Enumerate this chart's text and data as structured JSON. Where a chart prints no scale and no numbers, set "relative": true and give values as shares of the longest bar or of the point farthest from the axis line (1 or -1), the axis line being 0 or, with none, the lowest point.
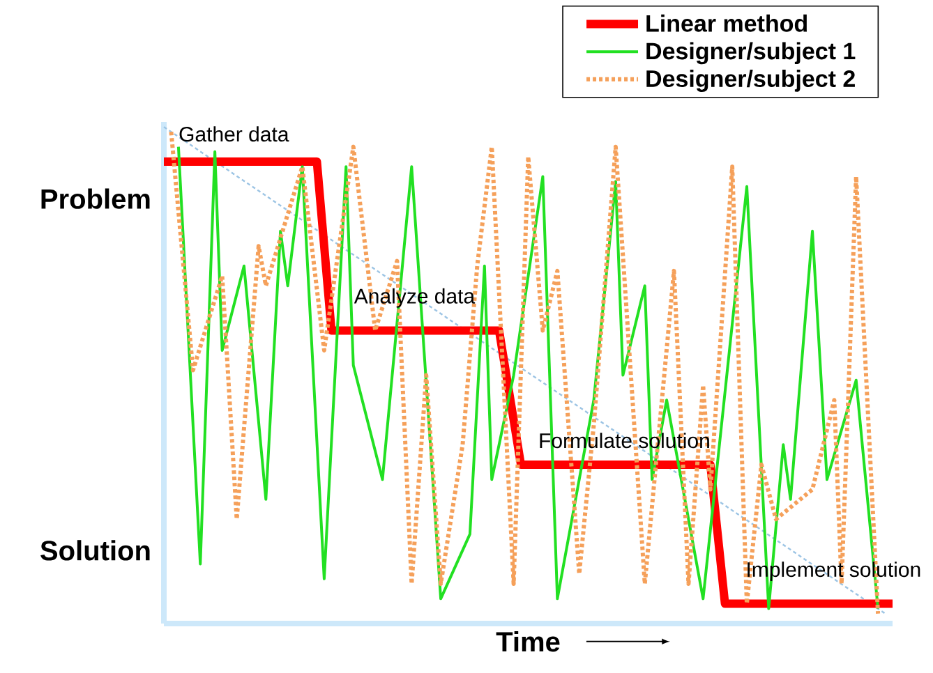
{
  "chart_data": {
    "type": "line",
    "relative": true,
    "xlabel": "Time",
    "legend": "top right",
    "marker": "none",
    "categories": [
      null,
      null,
      null,
      null,
      null,
      null,
      null,
      null,
      null,
      null,
      null,
      null,
      null,
      null,
      null,
      null,
      null,
      null,
      null,
      null,
      null,
      null,
      null,
      null,
      null,
      null,
      null,
      null,
      null,
      null,
      null,
      null,
      null,
      null,
      null,
      null,
      null,
      null,
      null,
      null,
      null,
      null,
      null,
      null,
      null,
      null,
      null,
      null,
      null,
      null,
      null,
      null,
      null,
      null,
      null,
      null,
      null,
      null,
      null,
      null,
      null,
      null,
      null,
      null,
      null,
      null,
      null,
      null,
      null,
      null,
      null,
      null,
      null,
      null,
      null,
      null,
      null,
      null,
      null,
      null,
      null,
      null,
      null,
      null,
      null,
      null,
      null,
      null,
      null,
      null,
      null,
      null,
      null,
      null,
      null,
      null,
      null,
      null,
      null,
      null,
      null
    ],
    "series": [
      {
        "name": "Linear method",
        "color": "#ff0000",
        "line_style": "solid",
        "values": [
          0.93,
          null,
          null,
          null,
          null,
          null,
          null,
          null,
          null,
          null,
          null,
          null,
          null,
          null,
          null,
          null,
          null,
          null,
          null,
          null,
          null,
          0.93,
          null,
          0.59,
          null,
          null,
          null,
          null,
          null,
          null,
          null,
          null,
          null,
          null,
          null,
          null,
          null,
          null,
          null,
          null,
          null,
          null,
          null,
          null,
          null,
          null,
          0.59,
          null,
          null,
          0.32,
          null,
          null,
          null,
          null,
          null,
          null,
          null,
          null,
          null,
          null,
          null,
          null,
          null,
          null,
          null,
          null,
          null,
          null,
          null,
          null,
          null,
          null,
          null,
          null,
          null,
          0.32,
          null,
          0.04,
          null,
          null,
          null,
          null,
          null,
          null,
          null,
          null,
          null,
          null,
          null,
          null,
          null,
          null,
          null,
          null,
          null,
          null,
          null,
          null,
          null,
          null,
          0.04
        ]
      },
      {
        "name": "Designer/subject 1",
        "color": "#22e022",
        "line_style": "solid",
        "values": [
          null,
          null,
          0.96,
          null,
          null,
          0.12,
          null,
          0.95,
          0.55,
          null,
          null,
          0.72,
          null,
          null,
          0.25,
          null,
          0.79,
          0.68,
          null,
          0.92,
          null,
          null,
          0.09,
          null,
          null,
          0.92,
          0.52,
          null,
          null,
          null,
          0.29,
          null,
          null,
          null,
          0.92,
          null,
          null,
          null,
          0.05,
          null,
          null,
          null,
          0.18,
          null,
          0.72,
          0.29,
          null,
          null,
          0.5,
          null,
          null,
          null,
          0.9,
          null,
          0.05,
          null,
          null,
          null,
          null,
          0.45,
          null,
          null,
          0.89,
          0.5,
          null,
          null,
          0.68,
          0.29,
          null,
          0.45,
          null,
          null,
          null,
          null,
          0.05,
          null,
          null,
          null,
          null,
          null,
          0.88,
          null,
          null,
          0.03,
          null,
          0.36,
          0.25,
          null,
          null,
          0.79,
          null,
          0.29,
          null,
          null,
          null,
          0.49,
          null,
          null,
          0.03,
          null,
          null
        ]
      },
      {
        "name": "Designer/subject 2",
        "color": "#f5a05a",
        "line_style": "dotted",
        "values": [
          null,
          0.99,
          null,
          null,
          0.51,
          null,
          null,
          null,
          0.7,
          null,
          0.21,
          null,
          null,
          0.76,
          0.68,
          null,
          null,
          null,
          null,
          0.92,
          null,
          null,
          0.55,
          null,
          null,
          null,
          0.96,
          null,
          null,
          0.59,
          null,
          null,
          0.73,
          null,
          0.08,
          null,
          0.5,
          null,
          0.08,
          null,
          null,
          0.36,
          null,
          0.72,
          null,
          0.96,
          null,
          null,
          0.08,
          null,
          0.94,
          null,
          0.59,
          null,
          0.71,
          null,
          null,
          0.1,
          null,
          0.4,
          null,
          null,
          0.96,
          null,
          null,
          null,
          0.08,
          null,
          null,
          null,
          0.71,
          null,
          0.08,
          null,
          0.48,
          0.27,
          null,
          null,
          0.92,
          null,
          0.04,
          null,
          0.32,
          null,
          0.21,
          null,
          null,
          null,
          null,
          0.27,
          null,
          null,
          0.45,
          0.08,
          null,
          0.9,
          null,
          null,
          0.02,
          null,
          null
        ]
      },
      {
        "color": "#9cc4e4",
        "line_style": "dotted",
        "values": [
          1,
          null,
          null,
          null,
          null,
          null,
          null,
          null,
          null,
          null,
          null,
          null,
          null,
          null,
          null,
          null,
          null,
          null,
          null,
          null,
          null,
          null,
          null,
          null,
          null,
          null,
          null,
          null,
          null,
          null,
          null,
          null,
          null,
          null,
          null,
          null,
          null,
          null,
          null,
          null,
          null,
          null,
          null,
          null,
          null,
          null,
          null,
          null,
          null,
          null,
          null,
          null,
          null,
          null,
          null,
          null,
          null,
          null,
          null,
          null,
          null,
          null,
          null,
          null,
          null,
          null,
          null,
          null,
          null,
          null,
          null,
          null,
          null,
          null,
          null,
          null,
          null,
          null,
          null,
          null,
          null,
          null,
          null,
          null,
          null,
          null,
          null,
          null,
          null,
          null,
          null,
          null,
          null,
          null,
          null,
          null,
          null,
          null,
          null,
          0.02,
          null
        ]
      }
    ],
    "annotations": [
      "Problem",
      "Gather data",
      "Analyze data",
      "Formulate solution",
      "Implement solution",
      "Solution"
    ]
  }
}
